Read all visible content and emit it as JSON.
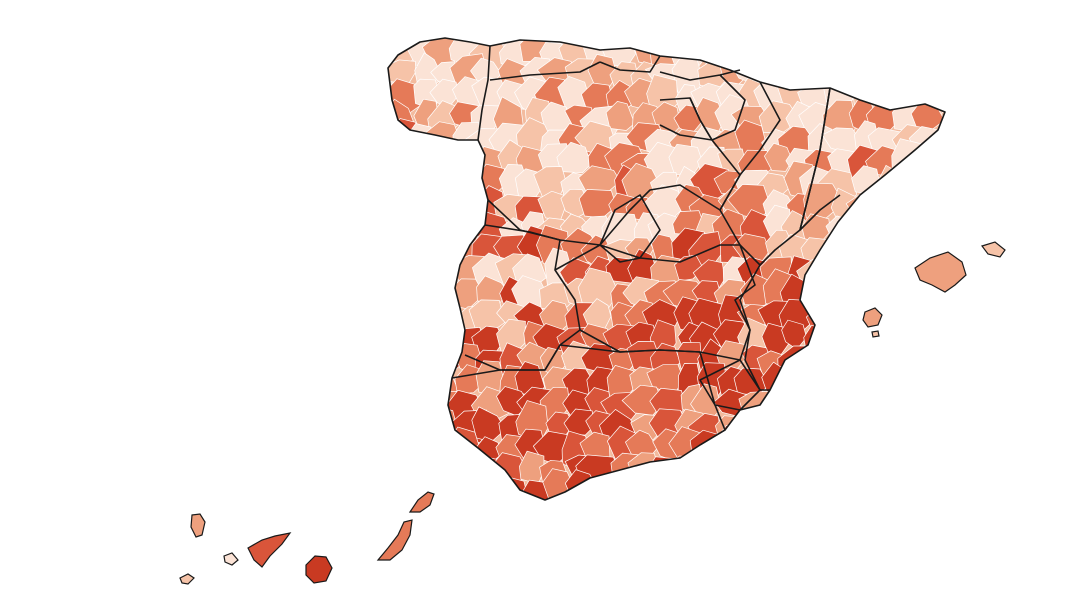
{
  "map": {
    "colors": {
      "background": "#ffffff",
      "border_region": "#1a1a1a",
      "border_unit": "#ffffff",
      "scale": [
        "#fbe3d6",
        "#f6c3a8",
        "#eea07e",
        "#e57a58",
        "#d9553a",
        "#c93a22"
      ]
    },
    "islands": [
      "balearic",
      "canary"
    ]
  }
}
